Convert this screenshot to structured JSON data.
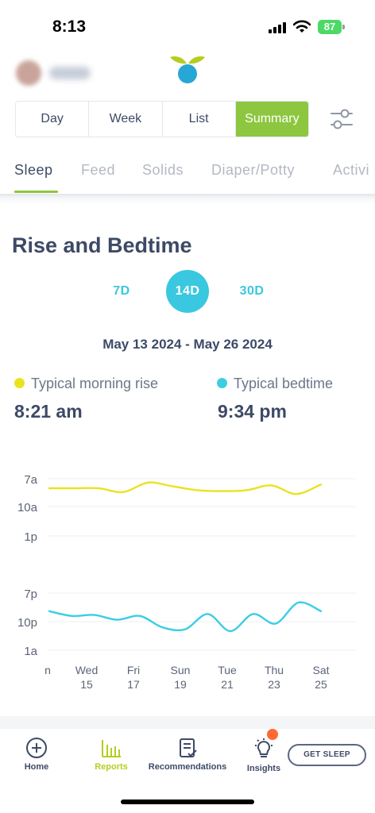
{
  "status_bar": {
    "time": "8:13",
    "battery": "87"
  },
  "segmented": {
    "items": [
      {
        "label": "Day",
        "active": false
      },
      {
        "label": "Week",
        "active": false
      },
      {
        "label": "List",
        "active": false
      },
      {
        "label": "Summary",
        "active": true
      }
    ]
  },
  "category_tabs": [
    {
      "label": "Sleep",
      "active": true
    },
    {
      "label": "Feed",
      "active": false
    },
    {
      "label": "Solids",
      "active": false
    },
    {
      "label": "Diaper/Potty",
      "active": false
    },
    {
      "label": "Activi",
      "active": false
    }
  ],
  "section": {
    "title": "Rise and Bedtime",
    "ranges": [
      {
        "label": "7D",
        "active": false
      },
      {
        "label": "14D",
        "active": true
      },
      {
        "label": "30D",
        "active": false
      }
    ],
    "date_range": "May 13 2024 - May 26 2024"
  },
  "legend": {
    "rise": {
      "label": "Typical morning rise",
      "value": "8:21 am",
      "color": "#ebe21f"
    },
    "bed": {
      "label": "Typical bedtime",
      "value": "9:34 pm",
      "color": "#3ccde3"
    }
  },
  "chart_data": {
    "type": "line",
    "x_ticks": [
      {
        "day": "n",
        "date": ""
      },
      {
        "day": "Wed",
        "date": "15"
      },
      {
        "day": "Fri",
        "date": "17"
      },
      {
        "day": "Sun",
        "date": "19"
      },
      {
        "day": "Tue",
        "date": "21"
      },
      {
        "day": "Thu",
        "date": "23"
      },
      {
        "day": "Sat",
        "date": "25"
      }
    ],
    "y_ticks_top": [
      "7a",
      "10a",
      "1p"
    ],
    "y_ticks_bottom": [
      "7p",
      "10p",
      "1a"
    ],
    "series": [
      {
        "color": "#ebe21f",
        "values": [
          8.0,
          8.0,
          8.0,
          8.4,
          7.4,
          7.8,
          8.2,
          8.3,
          8.2,
          7.7,
          8.6,
          7.6
        ]
      },
      {
        "color": "#3ccde3",
        "values": [
          20.9,
          21.4,
          21.3,
          21.8,
          21.4,
          22.6,
          22.8,
          21.2,
          23.0,
          21.2,
          22.2,
          20.0,
          20.9
        ]
      }
    ]
  },
  "nav": {
    "items": [
      {
        "label": "Home",
        "icon": "plus-circle-icon",
        "active": false
      },
      {
        "label": "Reports",
        "icon": "bar-chart-icon",
        "active": true
      },
      {
        "label": "Recommendations",
        "icon": "clipboard-check-icon",
        "active": false
      },
      {
        "label": "Insights",
        "icon": "lightbulb-icon",
        "active": false
      }
    ],
    "cta": "GET SLEEP"
  }
}
